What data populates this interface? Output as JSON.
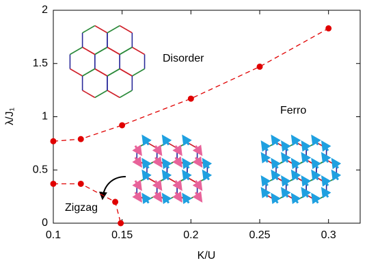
{
  "chart_data": {
    "type": "line",
    "xlabel": "K/U",
    "ylabel": "λ/J₁",
    "annotations": [
      "Disorder",
      "Ferro",
      "Zigzag"
    ],
    "xlim": [
      0.1,
      0.323
    ],
    "ylim": [
      0,
      2
    ],
    "xticks": [
      0.1,
      0.15,
      0.2,
      0.25,
      0.3
    ],
    "yticks": [
      0,
      0.5,
      1,
      1.5,
      2
    ],
    "series": [
      {
        "x": [
          0.1,
          0.12,
          0.15,
          0.2,
          0.25,
          0.3
        ],
        "values": [
          0.77,
          0.79,
          0.92,
          1.17,
          1.47,
          1.83
        ],
        "color": "#e00000"
      },
      {
        "x": [
          0.1,
          0.12,
          0.145,
          0.149
        ],
        "values": [
          0.37,
          0.37,
          0.2,
          0
        ],
        "color": "#e00000"
      }
    ]
  }
}
